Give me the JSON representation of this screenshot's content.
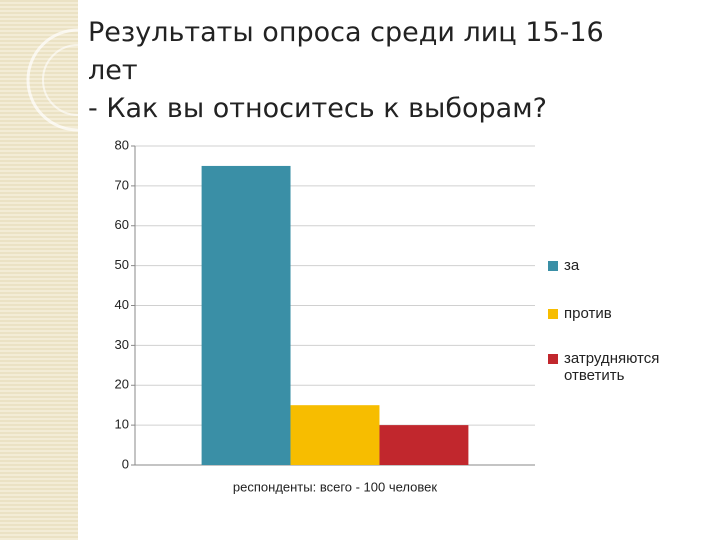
{
  "chart_data": {
    "type": "bar",
    "title": [
      "Результаты опроса среди лиц 15-16 лет",
      "- Как вы относитесь к выборам?"
    ],
    "categories": [
      "респонденты: всего - 100 человек"
    ],
    "series": [
      {
        "name": "за",
        "color": "#3a8fa6",
        "values": [
          75
        ]
      },
      {
        "name": "против",
        "color": "#f7bd00",
        "values": [
          15
        ]
      },
      {
        "name": "затрудняются ответить",
        "color": "#c1272d",
        "values": [
          10
        ]
      }
    ],
    "ylim": [
      0,
      80
    ],
    "yticks": [
      0,
      10,
      20,
      30,
      40,
      50,
      60,
      70,
      80
    ],
    "grid": true,
    "legend": "right"
  }
}
